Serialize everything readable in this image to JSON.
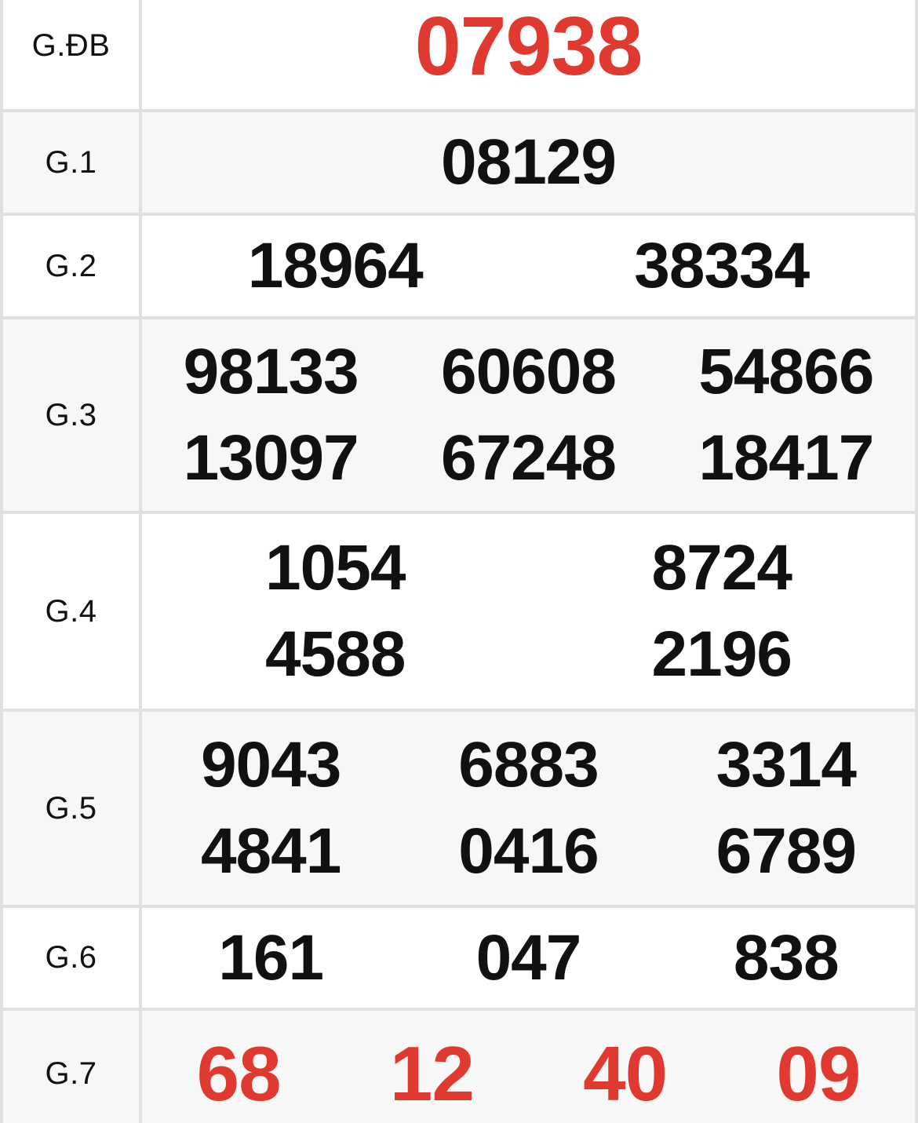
{
  "colors": {
    "accent_red": "#e0392f",
    "number_black": "#111111",
    "alt_row_bg": "#f7f7f7",
    "border": "#e0e0e0"
  },
  "prizes": {
    "rows": [
      {
        "label": "G.ĐB",
        "lines": [
          [
            "07938"
          ]
        ]
      },
      {
        "label": "G.1",
        "lines": [
          [
            "08129"
          ]
        ]
      },
      {
        "label": "G.2",
        "lines": [
          [
            "18964",
            "38334"
          ]
        ]
      },
      {
        "label": "G.3",
        "lines": [
          [
            "98133",
            "60608",
            "54866"
          ],
          [
            "13097",
            "67248",
            "18417"
          ]
        ]
      },
      {
        "label": "G.4",
        "lines": [
          [
            "1054",
            "8724"
          ],
          [
            "4588",
            "2196"
          ]
        ]
      },
      {
        "label": "G.5",
        "lines": [
          [
            "9043",
            "6883",
            "3314"
          ],
          [
            "4841",
            "0416",
            "6789"
          ]
        ]
      },
      {
        "label": "G.6",
        "lines": [
          [
            "161",
            "047",
            "838"
          ]
        ]
      },
      {
        "label": "G.7",
        "lines": [
          [
            "68",
            "12",
            "40",
            "09"
          ]
        ]
      }
    ]
  }
}
